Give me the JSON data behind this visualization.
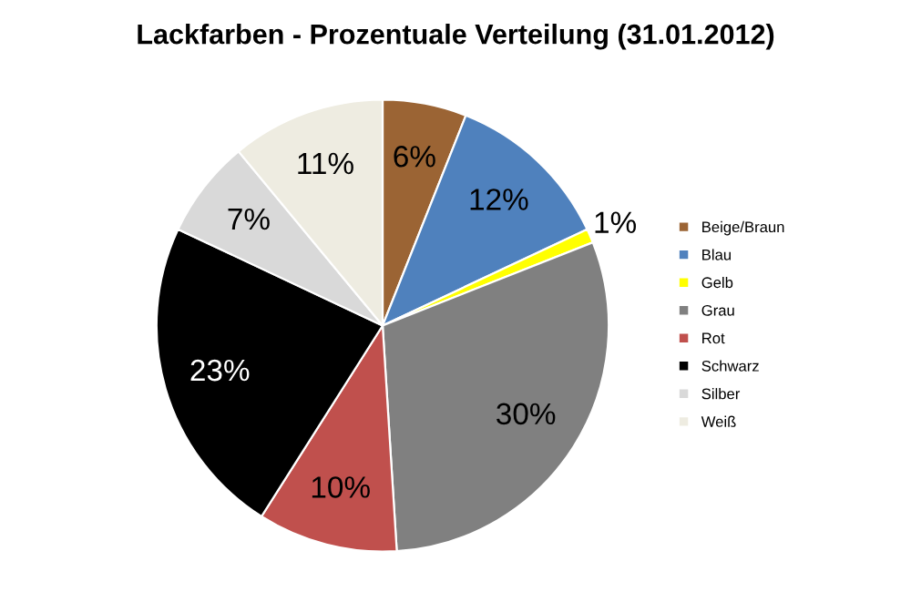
{
  "chart_data": {
    "type": "pie",
    "title": "Lackfarben - Prozentuale Verteilung (31.01.2012)",
    "categories": [
      "Beige/Braun",
      "Blau",
      "Gelb",
      "Grau",
      "Rot",
      "Schwarz",
      "Silber",
      "Weiß"
    ],
    "values": [
      6,
      12,
      1,
      30,
      10,
      23,
      7,
      11
    ],
    "colors": [
      "#9b6434",
      "#4f81bd",
      "#ffff00",
      "#808080",
      "#c0504d",
      "#000000",
      "#d9d9d9",
      "#eeece1"
    ],
    "value_labels": [
      "6%",
      "12%",
      "1%",
      "30%",
      "10%",
      "23%",
      "7%",
      "11%"
    ],
    "legend": "right"
  }
}
